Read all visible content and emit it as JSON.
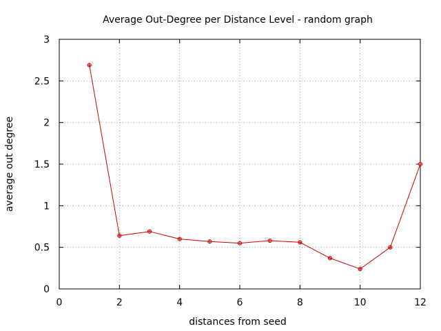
{
  "chart_data": {
    "type": "line",
    "title": "Average Out-Degree per Distance Level - random graph",
    "xlabel": "distances from seed",
    "ylabel": "average out degree",
    "xlim": [
      0,
      12
    ],
    "ylim": [
      0,
      3
    ],
    "x_ticks": [
      "0",
      "2",
      "4",
      "6",
      "8",
      "10",
      "12"
    ],
    "y_ticks": [
      "0",
      "0.5",
      "1",
      "1.5",
      "2",
      "2.5",
      "3"
    ],
    "grid": true,
    "legend": "none",
    "series": [
      {
        "color": "#cc0000",
        "marker": "circle-plus",
        "x": [
          1,
          2,
          3,
          4,
          5,
          6,
          7,
          8,
          9,
          10,
          11,
          12
        ],
        "y": [
          2.69,
          0.64,
          0.69,
          0.6,
          0.57,
          0.55,
          0.58,
          0.56,
          0.37,
          0.24,
          0.5,
          1.5
        ]
      }
    ]
  }
}
